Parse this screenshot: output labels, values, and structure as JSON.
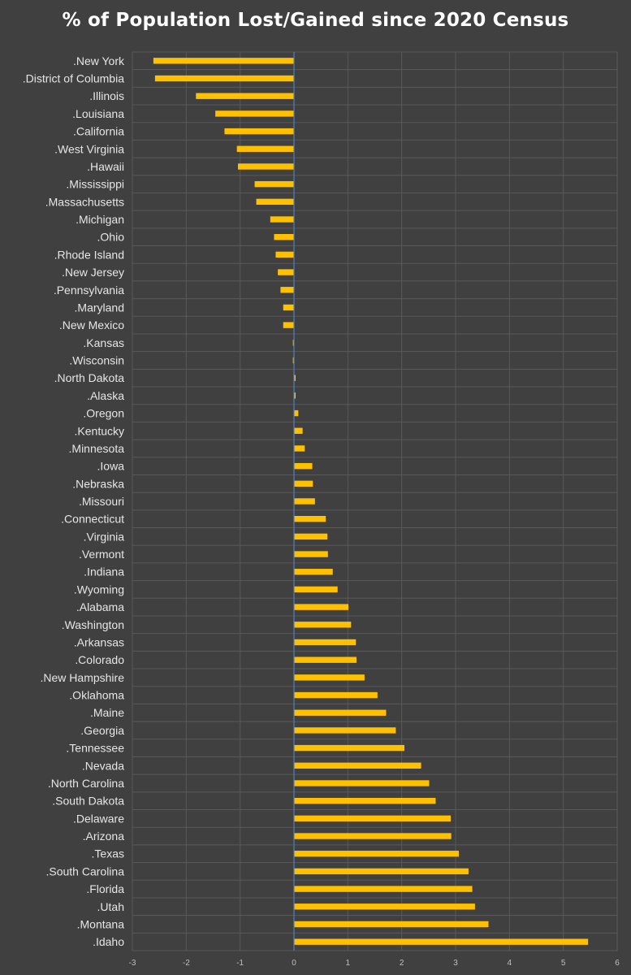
{
  "chart_data": {
    "type": "bar",
    "orientation": "horizontal",
    "title": "% of Population Lost/Gained since 2020 Census",
    "xlabel": "",
    "ylabel": "",
    "xlim": [
      -3,
      6
    ],
    "x_ticks": [
      -3,
      -2,
      -1,
      0,
      1,
      2,
      3,
      4,
      5,
      6
    ],
    "grid": true,
    "legend": "none",
    "categories": [
      ".New York",
      ".District of Columbia",
      ".Illinois",
      ".Louisiana",
      ".California",
      ".West Virginia",
      ".Hawaii",
      ".Mississippi",
      ".Massachusetts",
      ".Michigan",
      ".Ohio",
      ".Rhode Island",
      ".New Jersey",
      ".Pennsylvania",
      ".Maryland",
      ".New Mexico",
      ".Kansas",
      ".Wisconsin",
      ".North Dakota",
      ".Alaska",
      ".Oregon",
      ".Kentucky",
      ".Minnesota",
      ".Iowa",
      ".Nebraska",
      ".Missouri",
      ".Connecticut",
      ".Virginia",
      ".Vermont",
      ".Indiana",
      ".Wyoming",
      ".Alabama",
      ".Washington",
      ".Arkansas",
      ".Colorado",
      ".New Hampshire",
      ".Oklahoma",
      ".Maine",
      ".Georgia",
      ".Tennessee",
      ".Nevada",
      ".North Carolina",
      ".South Dakota",
      ".Delaware",
      ".Arizona",
      ".Texas",
      ".South Carolina",
      ".Florida",
      ".Utah",
      ".Montana",
      ".Idaho"
    ],
    "values": [
      -2.61,
      -2.58,
      -1.82,
      -1.46,
      -1.29,
      -1.06,
      -1.04,
      -0.73,
      -0.7,
      -0.44,
      -0.37,
      -0.34,
      -0.3,
      -0.25,
      -0.2,
      -0.2,
      -0.02,
      -0.02,
      0.03,
      0.03,
      0.08,
      0.16,
      0.2,
      0.34,
      0.35,
      0.39,
      0.59,
      0.62,
      0.63,
      0.72,
      0.81,
      1.01,
      1.06,
      1.15,
      1.16,
      1.31,
      1.55,
      1.71,
      1.89,
      2.05,
      2.36,
      2.51,
      2.63,
      2.91,
      2.92,
      3.06,
      3.24,
      3.31,
      3.36,
      3.61,
      5.46
    ]
  },
  "colors": {
    "background": "#404040",
    "bar": "#ffc000",
    "grid": "#595959",
    "zero_axis": "#4f81bd",
    "label_text": "#e6e6e6",
    "tick_text": "#bfbfbf",
    "title_text": "#ffffff"
  }
}
